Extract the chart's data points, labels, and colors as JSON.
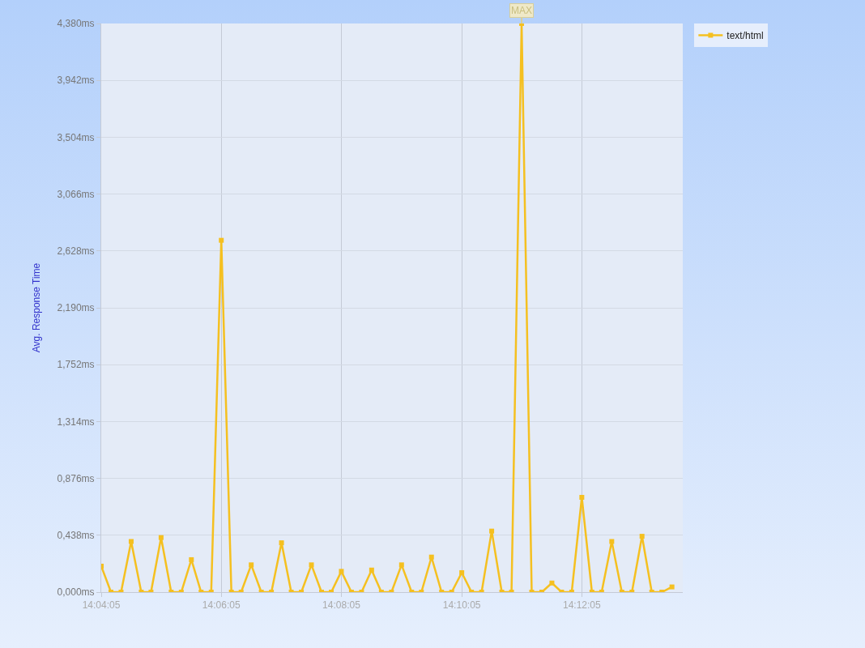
{
  "chart_data": {
    "type": "line",
    "ylabel": "Avg. Response Time",
    "x": [
      14.0681,
      14.0708,
      14.0736,
      14.0764,
      14.0792,
      14.0819,
      14.0847,
      14.0875,
      14.0903,
      14.0931,
      14.0958,
      14.0986,
      14.1014,
      14.1042,
      14.1069,
      14.1097,
      14.1125,
      14.1153,
      14.1181,
      14.1208,
      14.1236,
      14.1264,
      14.1292,
      14.1319,
      14.1347,
      14.1375,
      14.1403,
      14.1431,
      14.1458,
      14.1486,
      14.1514,
      14.1542,
      14.1569,
      14.1597,
      14.1625,
      14.1653,
      14.1681,
      14.1708,
      14.1736,
      14.1764,
      14.1792,
      14.1819,
      14.1847,
      14.1875,
      14.1903,
      14.1931,
      14.1958,
      14.1986,
      14.2014,
      14.2042,
      14.2069,
      14.2097,
      14.2125,
      14.2153,
      14.2181,
      14.2208,
      14.2236,
      14.2264
    ],
    "series": [
      {
        "name": "text/html",
        "color": "#f5c020",
        "values": [
          0.2,
          0,
          0,
          0.39,
          0,
          0,
          0.42,
          0,
          0,
          0.25,
          0,
          0,
          2.71,
          0,
          0,
          0.21,
          0,
          0,
          0.38,
          0,
          0,
          0.21,
          0,
          0,
          0.16,
          0,
          0,
          0.17,
          0,
          0,
          0.21,
          0,
          0,
          0.27,
          0,
          0,
          0.15,
          0,
          0,
          0.47,
          0,
          0,
          4.38,
          0,
          0,
          0.07,
          0,
          0,
          0.73,
          0,
          0,
          0.39,
          0,
          0,
          0.43,
          0,
          0,
          0.04
        ]
      }
    ],
    "xlim": [
      14.0681,
      14.2294
    ],
    "xticks": [
      {
        "value": 14.0681,
        "label": "14:04:05"
      },
      {
        "value": 14.1014,
        "label": "14:06:05"
      },
      {
        "value": 14.1347,
        "label": "14:08:05"
      },
      {
        "value": 14.1681,
        "label": "14:10:05"
      },
      {
        "value": 14.2014,
        "label": "14:12:05"
      }
    ],
    "ylim": [
      0,
      4.38
    ],
    "yticks": [
      {
        "value": 0,
        "label": "0,000ms"
      },
      {
        "value": 0.438,
        "label": "0,438ms"
      },
      {
        "value": 0.876,
        "label": "0,876ms"
      },
      {
        "value": 1.314,
        "label": "1,314ms"
      },
      {
        "value": 1.752,
        "label": "1,752ms"
      },
      {
        "value": 2.19,
        "label": "2,190ms"
      },
      {
        "value": 2.628,
        "label": "2,628ms"
      },
      {
        "value": 3.066,
        "label": "3,066ms"
      },
      {
        "value": 3.504,
        "label": "3,504ms"
      },
      {
        "value": 3.942,
        "label": "3,942ms"
      },
      {
        "value": 4.38,
        "label": "4,380ms"
      }
    ],
    "annotations": [
      {
        "text": "MAX",
        "x": 14.1847,
        "y": 4.38
      }
    ],
    "grid": true,
    "legend": "top right",
    "marker": "square",
    "line_style": "solid"
  }
}
